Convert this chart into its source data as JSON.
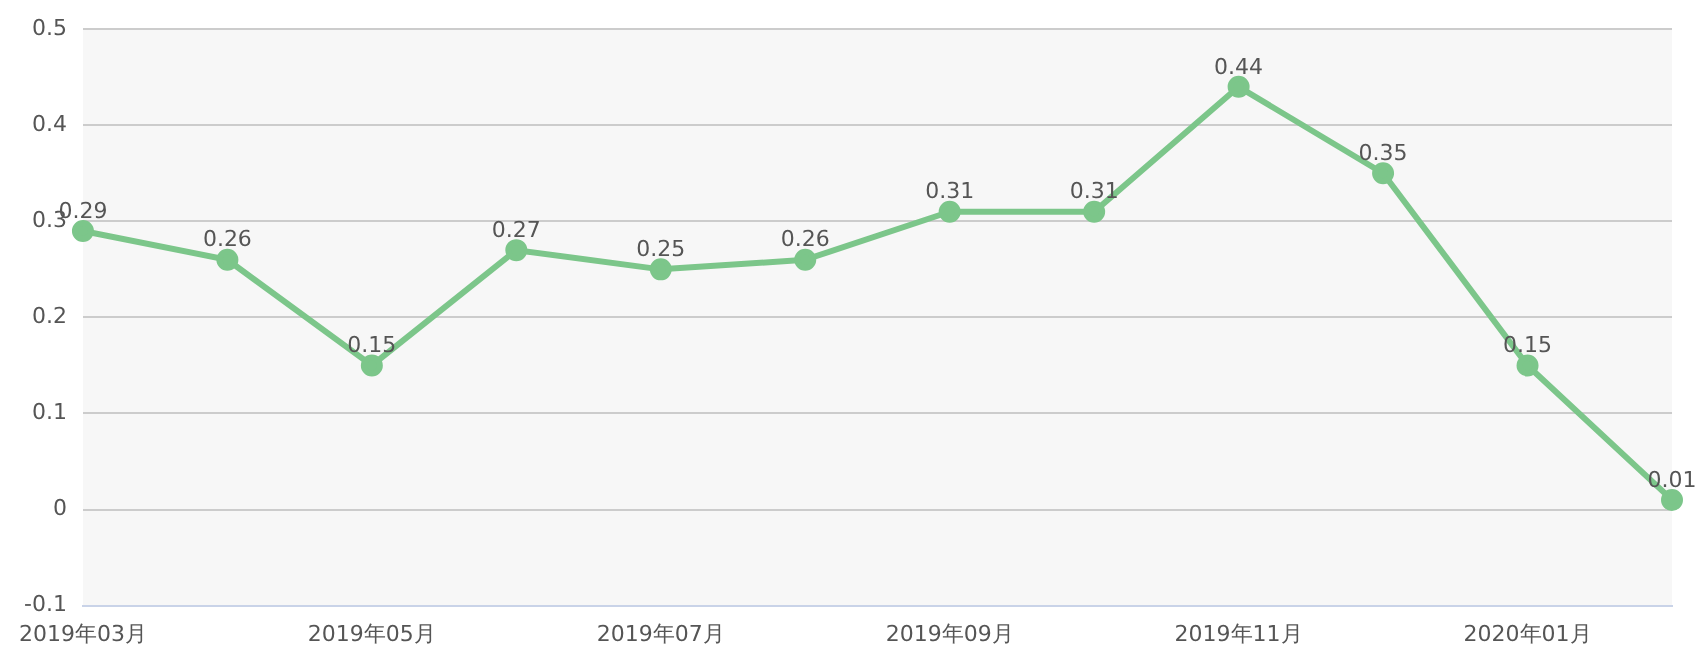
{
  "chart_data": {
    "type": "line",
    "categories": [
      "2019年03月",
      null,
      "2019年05月",
      null,
      "2019年07月",
      null,
      "2019年09月",
      null,
      "2019年11月",
      null,
      "2020年01月",
      null
    ],
    "series": [
      {
        "color": "#7cc68a",
        "values": [
          0.29,
          0.26,
          0.15,
          0.27,
          0.25,
          0.26,
          0.31,
          0.31,
          0.44,
          0.35,
          0.15,
          0.01
        ]
      }
    ],
    "ylim": [
      -0.1,
      0.5
    ],
    "yticks": [
      -0.1,
      0,
      0.1,
      0.2,
      0.3,
      0.4,
      0.5
    ],
    "grid": "y",
    "marker": "circle",
    "line_style": "solid",
    "data_labels": true,
    "legend": false
  }
}
